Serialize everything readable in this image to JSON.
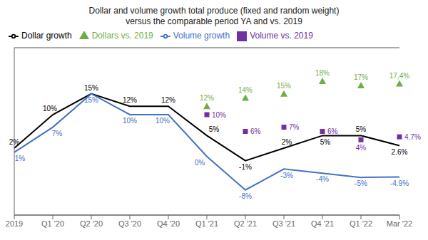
{
  "chart_data": {
    "type": "line",
    "title": "Dollar and volume growth total produce (fixed and random weight)",
    "subtitle": "versus the comparable period YA and vs. 2019",
    "categories": [
      "2019",
      "Q1 '20",
      "Q2 '20",
      "Q3 '20",
      "Q4 '20",
      "Q1 '21",
      "Q2 '21",
      "Q3 '21",
      "Q4 '21",
      "Q1 '22",
      "Mar '22"
    ],
    "series": [
      {
        "name": "Dollar growth",
        "type": "line",
        "color": "#000000",
        "values": [
          2,
          10,
          15,
          12,
          12,
          5,
          -1,
          2,
          5,
          5,
          2.6
        ],
        "value_labels": [
          "2%",
          "10%",
          "15%",
          "12%",
          "12%",
          "5%",
          "-1%",
          "2%",
          "5%",
          "5%",
          "2.6%"
        ]
      },
      {
        "name": "Volume growth",
        "type": "line",
        "color": "#4472c4",
        "values": [
          1,
          7,
          15,
          10,
          10,
          0,
          -8,
          -3,
          -4,
          -5,
          -4.9
        ],
        "value_labels": [
          "1%",
          "7%",
          "15%",
          "10%",
          "10%",
          "0%",
          "-8%",
          "-3%",
          "-4%",
          "-5%",
          "-4.9%"
        ]
      },
      {
        "name": "Dollars vs. 2019",
        "type": "scatter",
        "marker": "triangle",
        "color": "#70ad47",
        "values": [
          null,
          null,
          null,
          null,
          null,
          12,
          14,
          15,
          18,
          17,
          17.4
        ],
        "value_labels": [
          null,
          null,
          null,
          null,
          null,
          "12%",
          "14%",
          "15%",
          "18%",
          "17%",
          "17,4%"
        ]
      },
      {
        "name": "Volume vs. 2019",
        "type": "scatter",
        "marker": "square",
        "color": "#7030a0",
        "values": [
          null,
          null,
          null,
          null,
          null,
          10,
          6,
          7,
          6,
          4,
          4.7
        ],
        "value_labels": [
          null,
          null,
          null,
          null,
          null,
          "10%",
          "6%",
          "7%",
          "6%",
          "4%",
          "4.7%"
        ]
      }
    ],
    "ylim": [
      -14,
      26
    ],
    "yticks": [
      0
    ],
    "grid": "y",
    "legend": "upper left",
    "data_labels": true,
    "tick_labels": "x"
  }
}
